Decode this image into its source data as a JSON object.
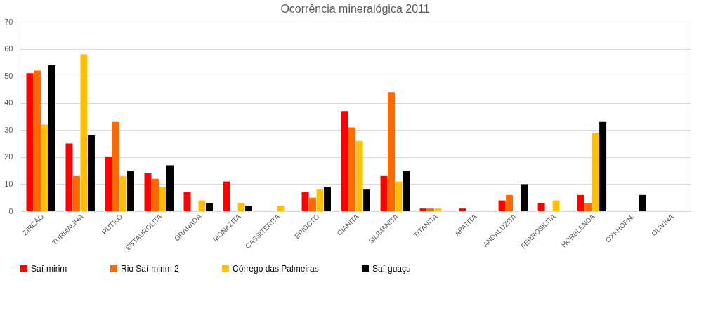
{
  "chart_data": {
    "type": "bar",
    "title": "Ocorrência mineralógica 2011",
    "categories": [
      "ZIRCÃO",
      "TURMALINA",
      "RUTILO",
      "ESTAUROLITA",
      "GRANADA",
      "MONAZITA",
      "CASSITERITA",
      "EPIDOTO",
      "CIANITA",
      "SILIMANITA",
      "TITANITA",
      "APATITA",
      "ANDALUZITA",
      "FERROSILITA",
      "HORBLENDA",
      "OXI-HORN.",
      "OLIVINA"
    ],
    "series": [
      {
        "name": "Saí-mirim",
        "color": "#ff0000",
        "values": [
          51,
          25,
          20,
          14,
          7,
          11,
          null,
          7,
          37,
          13,
          1,
          1,
          4,
          3,
          6,
          null,
          null
        ]
      },
      {
        "name": "Rio Saí-mirim 2",
        "color": "#ff6a00",
        "values": [
          52,
          13,
          33,
          12,
          null,
          null,
          null,
          5,
          31,
          44,
          1,
          null,
          6,
          null,
          3,
          null,
          null
        ]
      },
      {
        "name": "Córrego das Palmeiras",
        "color": "#ffc000",
        "values": [
          32,
          58,
          13,
          9,
          4,
          3,
          2,
          8,
          26,
          11,
          1,
          null,
          null,
          4,
          29,
          null,
          null
        ]
      },
      {
        "name": "Saí-guaçu",
        "color": "#000000",
        "values": [
          54,
          28,
          15,
          17,
          3,
          2,
          null,
          9,
          8,
          15,
          null,
          null,
          10,
          null,
          33,
          6,
          null
        ]
      }
    ],
    "ylim": [
      0,
      70
    ],
    "yticks": [
      0,
      10,
      20,
      30,
      40,
      50,
      60,
      70
    ],
    "grid": "y",
    "legend": "bottom"
  }
}
